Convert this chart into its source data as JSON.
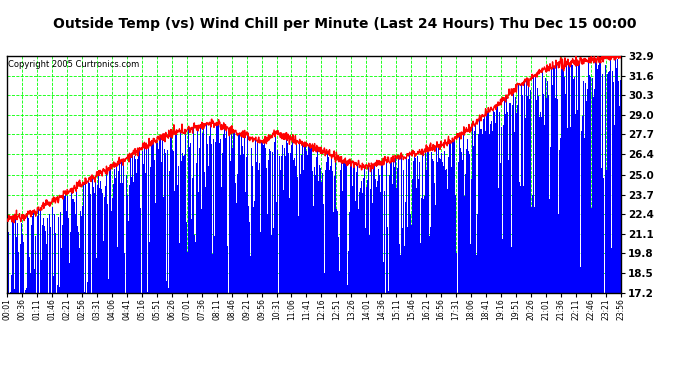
{
  "title": "Outside Temp (vs) Wind Chill per Minute (Last 24 Hours) Thu Dec 15 00:00",
  "copyright": "Copyright 2005 Curtronics.com",
  "y_min": 17.2,
  "y_max": 32.9,
  "y_ticks": [
    17.2,
    18.5,
    19.8,
    21.1,
    22.4,
    23.7,
    25.0,
    26.4,
    27.7,
    29.0,
    30.3,
    31.6,
    32.9
  ],
  "x_tick_labels": [
    "00:01",
    "00:36",
    "01:11",
    "01:46",
    "02:21",
    "02:56",
    "03:31",
    "04:06",
    "04:41",
    "05:16",
    "05:51",
    "06:26",
    "07:01",
    "07:36",
    "08:11",
    "08:46",
    "09:21",
    "09:56",
    "10:31",
    "11:06",
    "11:41",
    "12:16",
    "12:51",
    "13:26",
    "14:01",
    "14:36",
    "15:11",
    "15:46",
    "16:21",
    "16:56",
    "17:31",
    "18:06",
    "18:41",
    "19:16",
    "19:51",
    "20:26",
    "21:01",
    "21:36",
    "22:11",
    "22:46",
    "23:21",
    "23:56"
  ],
  "plot_bg_color": "#ffffff",
  "fig_bg_color": "#ffffff",
  "bar_color": "#0000ff",
  "line_color": "#ff0000",
  "grid_color": "#00ff00",
  "title_color": "#000000",
  "copyright_color": "#000000",
  "tick_label_color": "#000000",
  "outside_temp_keypoints": [
    [
      0,
      22.0
    ],
    [
      60,
      22.5
    ],
    [
      120,
      23.5
    ],
    [
      180,
      24.5
    ],
    [
      240,
      25.5
    ],
    [
      300,
      26.5
    ],
    [
      360,
      27.5
    ],
    [
      420,
      28.0
    ],
    [
      480,
      28.5
    ],
    [
      510,
      28.2
    ],
    [
      540,
      27.8
    ],
    [
      570,
      27.5
    ],
    [
      600,
      27.2
    ],
    [
      630,
      27.8
    ],
    [
      660,
      27.5
    ],
    [
      720,
      26.8
    ],
    [
      750,
      26.5
    ],
    [
      780,
      26.0
    ],
    [
      810,
      25.8
    ],
    [
      840,
      25.5
    ],
    [
      870,
      25.8
    ],
    [
      900,
      26.0
    ],
    [
      960,
      26.5
    ],
    [
      1020,
      27.0
    ],
    [
      1080,
      28.0
    ],
    [
      1140,
      29.5
    ],
    [
      1200,
      31.0
    ],
    [
      1260,
      32.0
    ],
    [
      1320,
      32.5
    ],
    [
      1380,
      32.7
    ],
    [
      1439,
      32.9
    ]
  ],
  "n_points": 1440
}
